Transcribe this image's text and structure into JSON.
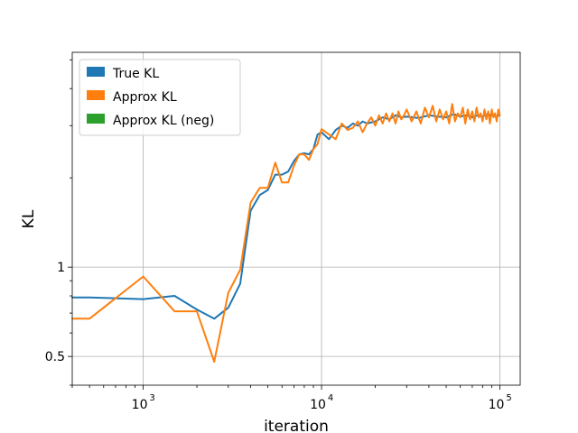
{
  "chart_data": {
    "type": "line",
    "xlabel": "iteration",
    "ylabel": "KL",
    "xscale": "log",
    "yscale": "log",
    "xlim": [
      400,
      130000
    ],
    "ylim": [
      0.4,
      5.3
    ],
    "xticks": [
      {
        "value": 1000,
        "label": "10",
        "exp": "3"
      },
      {
        "value": 10000,
        "label": "10",
        "exp": "4"
      },
      {
        "value": 100000,
        "label": "10",
        "exp": "5"
      }
    ],
    "yticks": [
      {
        "value": 0.5,
        "label": "0.5"
      },
      {
        "value": 1,
        "label": "1"
      }
    ],
    "grid": true,
    "legend": {
      "placement": "top-left",
      "entries": [
        {
          "name": "True KL",
          "color": "#1f77b4"
        },
        {
          "name": "Approx KL",
          "color": "#ff7f0e"
        },
        {
          "name": "Approx KL (neg)",
          "color": "#2ca02c"
        }
      ]
    },
    "series": [
      {
        "name": "True KL",
        "color": "#1f77b4",
        "x": [
          400,
          500,
          1000,
          1500,
          2000,
          2500,
          3000,
          3500,
          4000,
          4500,
          5000,
          5500,
          6000,
          6500,
          7000,
          7500,
          8000,
          8500,
          9000,
          9500,
          10000,
          11000,
          12000,
          13000,
          14000,
          15000,
          16000,
          17000,
          18000,
          20000,
          22000,
          24000,
          26000,
          28000,
          30000,
          35000,
          40000,
          45000,
          50000,
          55000,
          60000,
          65000,
          70000,
          75000,
          80000,
          85000,
          90000,
          95000,
          100000
        ],
        "y": [
          0.79,
          0.79,
          0.78,
          0.8,
          0.72,
          0.67,
          0.73,
          0.88,
          1.55,
          1.75,
          1.82,
          2.05,
          2.05,
          2.1,
          2.28,
          2.4,
          2.42,
          2.4,
          2.5,
          2.8,
          2.85,
          2.7,
          2.9,
          3.0,
          2.95,
          3.05,
          3.0,
          3.1,
          3.05,
          3.1,
          3.2,
          3.15,
          3.25,
          3.2,
          3.22,
          3.18,
          3.25,
          3.22,
          3.2,
          3.28,
          3.22,
          3.25,
          3.2,
          3.25,
          3.22,
          3.28,
          3.25,
          3.22,
          3.25
        ]
      },
      {
        "name": "Approx KL",
        "color": "#ff7f0e",
        "x": [
          400,
          500,
          1000,
          1500,
          2000,
          2500,
          3000,
          3500,
          4000,
          4500,
          5000,
          5500,
          6000,
          6500,
          7000,
          7500,
          8000,
          8500,
          9000,
          9500,
          10000,
          11000,
          12000,
          13000,
          14000,
          15000,
          16000,
          17000,
          18000,
          19000,
          20000,
          21000,
          22000,
          23000,
          24000,
          25000,
          26000,
          27000,
          28000,
          29000,
          30000,
          32000,
          34000,
          36000,
          38000,
          40000,
          42000,
          44000,
          46000,
          48000,
          50000,
          52000,
          54000,
          56000,
          58000,
          60000,
          62000,
          64000,
          66000,
          68000,
          70000,
          72000,
          74000,
          76000,
          78000,
          80000,
          82000,
          84000,
          86000,
          88000,
          90000,
          92000,
          94000,
          96000,
          98000,
          100000
        ],
        "y": [
          0.67,
          0.67,
          0.93,
          0.71,
          0.71,
          0.48,
          0.82,
          0.98,
          1.65,
          1.85,
          1.85,
          2.25,
          1.93,
          1.93,
          2.2,
          2.4,
          2.4,
          2.3,
          2.5,
          2.6,
          2.92,
          2.8,
          2.7,
          3.05,
          2.9,
          2.95,
          3.1,
          2.85,
          3.05,
          3.2,
          3.0,
          3.25,
          3.05,
          3.3,
          3.1,
          3.3,
          3.05,
          3.35,
          3.15,
          3.25,
          3.4,
          3.1,
          3.35,
          3.05,
          3.45,
          3.2,
          3.5,
          3.1,
          3.4,
          3.15,
          3.35,
          3.05,
          3.55,
          3.1,
          3.3,
          3.2,
          3.45,
          3.05,
          3.4,
          3.15,
          3.35,
          3.1,
          3.45,
          3.2,
          3.3,
          3.1,
          3.4,
          3.15,
          3.35,
          3.05,
          3.4,
          3.2,
          3.3,
          3.1,
          3.4,
          3.25
        ]
      },
      {
        "name": "Approx KL (neg)",
        "color": "#2ca02c",
        "x": [],
        "y": []
      }
    ]
  }
}
